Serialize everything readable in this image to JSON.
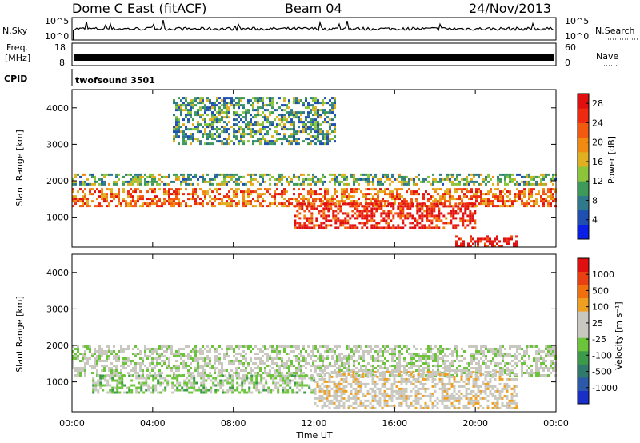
{
  "header": {
    "radar": "Dome C East (fitACF)",
    "beam": "Beam 04",
    "date": "24/Nov/2013"
  },
  "strip": {
    "nsky_label": "N.Sky",
    "nsky_ticks": [
      "10^5",
      "10^0"
    ],
    "nsearch_label": "N.Search",
    "nsearch_ticks": [
      "10^5",
      "10^0"
    ],
    "freq_label": "Freq.",
    "freq_unit": "[MHz]",
    "freq_ticks": [
      "18",
      "8"
    ],
    "nave_label": "Nave",
    "nave_ticks": [
      "60",
      "0"
    ],
    "cpid_label": "CPID",
    "cpid_value": "twofsound 3501"
  },
  "chart_data": [
    {
      "type": "heatmap",
      "name": "power-panel",
      "title": "",
      "xlabel": "",
      "ylabel": "Slant Range [km]",
      "x_ticks": [
        "00:00",
        "04:00",
        "08:00",
        "12:00",
        "16:00",
        "20:00",
        "00:00"
      ],
      "xlim_hours": [
        0,
        24
      ],
      "y_ticks": [
        1000,
        2000,
        3000,
        4000
      ],
      "ylim": [
        180,
        4500
      ],
      "colorbar": {
        "label": "Power [dB]",
        "ticks": [
          4,
          8,
          12,
          16,
          20,
          24,
          28
        ],
        "range": [
          0,
          30
        ],
        "colors": [
          "#0a1fe6",
          "#1f4fb0",
          "#2f7a8a",
          "#3d9a5a",
          "#8cc43a",
          "#e0b020",
          "#f08a10",
          "#f25a10",
          "#ee2a10",
          "#e01010"
        ]
      },
      "bands": [
        {
          "x0": 0,
          "x1": 24,
          "y0": 1300,
          "y1": 1800,
          "value": 22
        },
        {
          "x0": 11,
          "x1": 20,
          "y0": 700,
          "y1": 1400,
          "value": 27
        },
        {
          "x0": 19,
          "x1": 22,
          "y0": 200,
          "y1": 500,
          "value": 29
        },
        {
          "x0": 0,
          "x1": 24,
          "y0": 1900,
          "y1": 2200,
          "value": 12
        },
        {
          "x0": 5,
          "x1": 13,
          "y0": 3000,
          "y1": 4300,
          "value": 10
        }
      ]
    },
    {
      "type": "heatmap",
      "name": "velocity-panel",
      "title": "",
      "xlabel": "Time UT",
      "ylabel": "Slant Range [km]",
      "x_ticks": [
        "00:00",
        "04:00",
        "08:00",
        "12:00",
        "16:00",
        "20:00",
        "00:00"
      ],
      "xlim_hours": [
        0,
        24
      ],
      "y_ticks": [
        1000,
        2000,
        3000,
        4000
      ],
      "ylim": [
        180,
        4500
      ],
      "colorbar": {
        "label": "Velocity [m s⁻¹]",
        "ticks": [
          1000,
          500,
          100,
          25,
          -25,
          -100,
          -500,
          -1000
        ],
        "range": [
          -1200,
          1200
        ],
        "colors": [
          "#1a2fc8",
          "#2d5aa8",
          "#2f7a6a",
          "#3d9a4a",
          "#6cc43a",
          "#c8c8c0",
          "#c8c8c0",
          "#f0a020",
          "#f07010",
          "#e84010",
          "#e01010"
        ]
      },
      "bands": [
        {
          "x0": 0,
          "x1": 24,
          "y0": 1200,
          "y1": 2000,
          "value": 0
        },
        {
          "x0": 1,
          "x1": 12,
          "y0": 700,
          "y1": 1200,
          "value": -150
        },
        {
          "x0": 12,
          "x1": 22,
          "y0": 300,
          "y1": 1300,
          "value": 200
        }
      ]
    }
  ]
}
